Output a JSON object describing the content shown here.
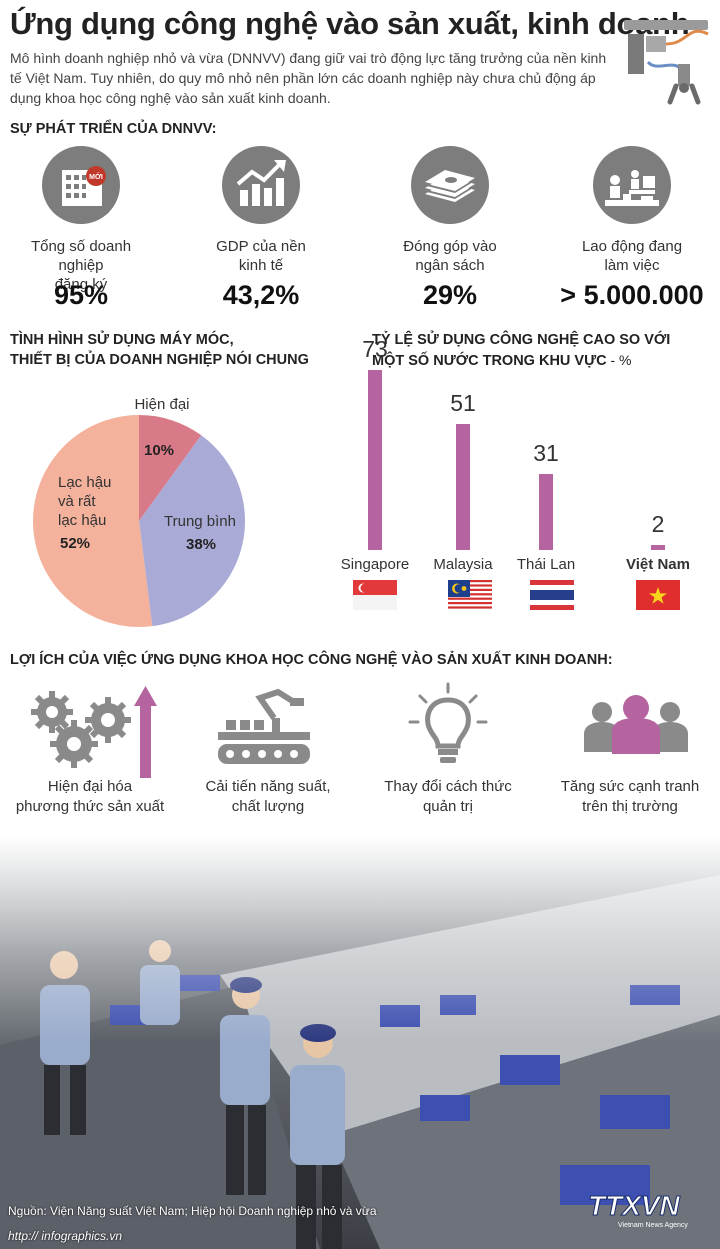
{
  "header": {
    "title": "Ứng dụng công nghệ vào sản xuất, kinh doanh",
    "intro": "Mô hình doanh nghiệp nhỏ và vừa (DNNVV) đang giữ vai trò động lực tăng trưởng của nền kinh tế Việt Nam. Tuy nhiên, do quy mô nhỏ nên phần lớn các doanh nghiệp này chưa chủ động áp dụng khoa học công nghệ vào sản xuất kinh doanh."
  },
  "development": {
    "heading": "SỰ PHÁT TRIỂN CỦA DNNVV:",
    "items": [
      {
        "label1": "Tổng số doanh nghiệp",
        "label2": "đăng ký",
        "value": "95%",
        "icon": "building-new-icon",
        "badge": "MỚI"
      },
      {
        "label1": "GDP của nền",
        "label2": "kinh tế",
        "value": "43,2%",
        "icon": "growth-chart-icon"
      },
      {
        "label1": "Đóng góp vào",
        "label2": "ngân sách",
        "value": "29%",
        "icon": "money-stack-icon"
      },
      {
        "label1": "Lao động đang",
        "label2": "làm việc",
        "value": "> 5.000.000",
        "icon": "workers-icon"
      }
    ]
  },
  "machinery": {
    "heading1": "TÌNH HÌNH SỬ DỤNG MÁY MÓC,",
    "heading2": "THIẾT BỊ CỦA DOANH NGHIỆP NÓI CHUNG",
    "labels": {
      "modern": "Hiện đại",
      "modern_pct": "10%",
      "medium": "Trung bình",
      "medium_pct": "38%",
      "old1": "Lạc hậu",
      "old2": "và rất",
      "old3": "lạc hậu",
      "old_pct": "52%"
    }
  },
  "hightech": {
    "heading1": "TỶ LỆ SỬ DỤNG CÔNG NGHỆ CAO SO VỚI",
    "heading2": "MỘT SỐ NƯỚC TRONG KHU VỰC",
    "unit": " - %"
  },
  "chart_data": [
    {
      "type": "pie",
      "title": "TÌNH HÌNH SỬ DỤNG MÁY MÓC, THIẾT BỊ CỦA DOANH NGHIỆP NÓI CHUNG",
      "categories": [
        "Hiện đại",
        "Trung bình",
        "Lạc hậu và rất lạc hậu"
      ],
      "values": [
        10,
        38,
        52
      ],
      "colors": [
        "#d97a88",
        "#a9abd6",
        "#f4b29d"
      ]
    },
    {
      "type": "bar",
      "title": "TỶ LỆ SỬ DỤNG CÔNG NGHỆ CAO SO VỚI MỘT SỐ NƯỚC TRONG KHU VỰC",
      "unit": "%",
      "categories": [
        "Singapore",
        "Malaysia",
        "Thái Lan",
        "Việt Nam"
      ],
      "values": [
        73,
        51,
        31,
        2
      ],
      "value_labels": [
        "73",
        "51",
        "31",
        "2"
      ],
      "ylim": [
        0,
        73
      ],
      "bar_color": "#b5649f",
      "highlight": "Việt Nam"
    }
  ],
  "benefits": {
    "heading": "LỢI ÍCH CỦA VIỆC ỨNG DỤNG KHOA HỌC CÔNG NGHỆ VÀO SẢN XUẤT KINH DOANH:",
    "items": [
      {
        "label1": "Hiện đại hóa",
        "label2": "phương thức sản xuất",
        "icon": "gears-arrow-icon"
      },
      {
        "label1": "Cải tiến năng suất,",
        "label2": "chất lượng",
        "icon": "robot-conveyor-icon"
      },
      {
        "label1": "Thay đổi cách thức",
        "label2": "quản trị",
        "icon": "lightbulb-icon"
      },
      {
        "label1": "Tăng sức cạnh tranh",
        "label2": "trên thị trường",
        "icon": "people-icon"
      }
    ]
  },
  "footer": {
    "source": "Nguồn: Viện Năng suất Việt Nam; Hiệp hội Doanh nghiệp nhỏ và vừa",
    "website": "http:// infographics.vn",
    "logo": "TTXVN",
    "logo_sub": "Vietnam News Agency"
  },
  "colors": {
    "accent": "#b5649f",
    "pie_modern": "#d97a88",
    "pie_medium": "#a9abd6",
    "pie_old": "#f4b29d",
    "icon_grey": "#7d7d7d"
  }
}
